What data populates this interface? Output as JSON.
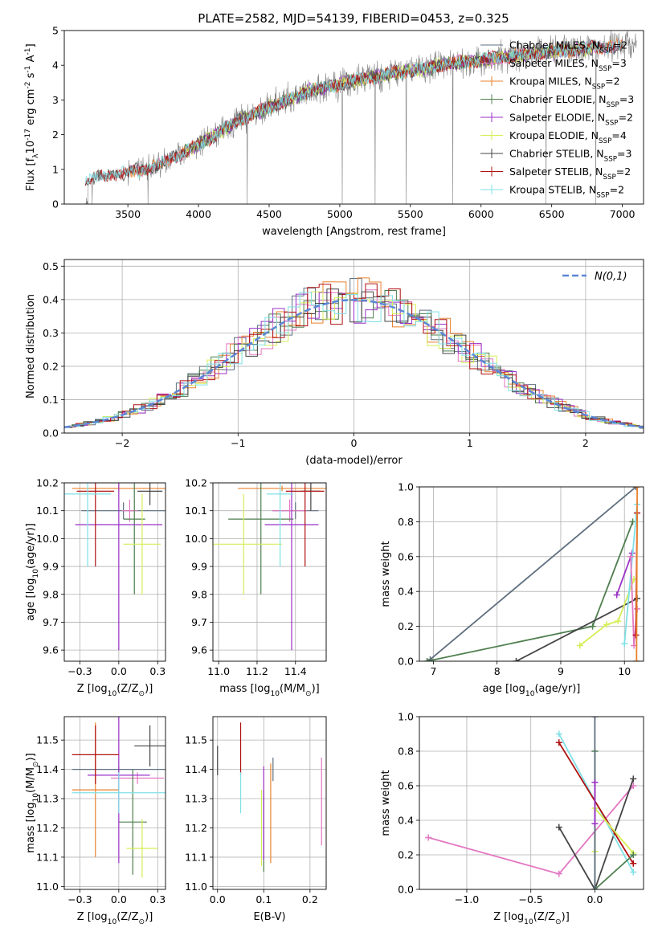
{
  "figure_title": "PLATE=2582, MJD=54139, FIBERID=0453, z=0.325",
  "colors": {
    "chab_miles": "#5f6f7f",
    "salp_miles": "#e377c2",
    "krou_miles": "#e9822e",
    "chab_elodie": "#4f7f4f",
    "salp_elodie": "#9b30c8",
    "krou_elodie": "#d6ee55",
    "chab_stelib": "#444444",
    "salp_stelib": "#b01010",
    "krou_stelib": "#7fe0e6",
    "data": "#808080",
    "gauss": "#5b86d6",
    "grid": "#b0b0b0"
  },
  "chart_data": [
    {
      "id": "spectrum",
      "type": "line",
      "title": "PLATE=2582, MJD=54139, FIBERID=0453, z=0.325",
      "xlabel": "wavelength [Angstrom, rest frame]",
      "ylabel": "Flux [f$_\\lambda$10$^{-17}$ erg cm$^{-2}$ s$^{-1}$ A$^{-1}$]",
      "xlim": [
        3050,
        7150
      ],
      "ylim": [
        0,
        5
      ],
      "xticks": [
        3500,
        4000,
        4500,
        5000,
        5500,
        6000,
        6500,
        7000
      ],
      "yticks": [
        0,
        1,
        2,
        3,
        4,
        5
      ],
      "grid": false,
      "legend": "right",
      "continuum": {
        "x": [
          3200,
          3300,
          3400,
          3500,
          3600,
          3700,
          3800,
          3900,
          4000,
          4100,
          4200,
          4300,
          4400,
          4500,
          4600,
          4700,
          4800,
          4900,
          5000,
          5100,
          5200,
          5300,
          5400,
          5500,
          5600,
          5700,
          5800,
          5900,
          6000,
          6100,
          6200,
          6300,
          6400,
          6500,
          6600,
          6700,
          6800,
          6900,
          7000,
          7100
        ],
        "y": [
          0.65,
          0.8,
          0.85,
          0.9,
          1.0,
          1.1,
          1.3,
          1.5,
          1.7,
          1.95,
          2.2,
          2.45,
          2.6,
          2.8,
          2.95,
          3.1,
          3.3,
          3.35,
          3.45,
          3.55,
          3.65,
          3.7,
          3.8,
          3.85,
          3.9,
          4.0,
          4.05,
          4.1,
          4.15,
          4.2,
          4.25,
          4.3,
          4.35,
          4.4,
          4.42,
          4.45,
          4.5,
          4.52,
          4.55,
          4.58
        ]
      },
      "data_noise_amplitude": 0.55,
      "series": [
        {
          "key": "chab_miles",
          "name": "Chabrier MILES, N$_{SSP}$=2",
          "range": [
            3500,
            7000
          ]
        },
        {
          "key": "salp_miles",
          "name": "Salpeter MILES, N$_{SSP}$=3",
          "range": [
            3500,
            7000
          ]
        },
        {
          "key": "krou_miles",
          "name": "Kroupa MILES, N$_{SSP}$=2",
          "range": [
            3500,
            7000
          ]
        },
        {
          "key": "chab_elodie",
          "name": "Chabrier ELODIE, N$_{SSP}$=3",
          "range": [
            3900,
            6800
          ]
        },
        {
          "key": "salp_elodie",
          "name": "Salpeter ELODIE, N$_{SSP}$=2",
          "range": [
            3900,
            6800
          ]
        },
        {
          "key": "krou_elodie",
          "name": "Kroupa ELODIE, N$_{SSP}$=4",
          "range": [
            3900,
            6800
          ]
        },
        {
          "key": "chab_stelib",
          "name": "Chabrier STELIB, N$_{SSP}$=3",
          "range": [
            3200,
            7000
          ]
        },
        {
          "key": "salp_stelib",
          "name": "Salpeter STELIB, N$_{SSP}$=2",
          "range": [
            3200,
            7000
          ]
        },
        {
          "key": "krou_stelib",
          "name": "Kroupa STELIB, N$_{SSP}$=2",
          "range": [
            3200,
            7000
          ]
        }
      ]
    },
    {
      "id": "residuals",
      "type": "line",
      "xlabel": "(data-model)/error",
      "ylabel": "Normed distribution",
      "xlim": [
        -2.5,
        2.5
      ],
      "ylim": [
        0,
        0.52
      ],
      "xticks": [
        -2,
        -1,
        0,
        1,
        2
      ],
      "yticks": [
        0.0,
        0.1,
        0.2,
        0.3,
        0.4,
        0.5
      ],
      "grid": true,
      "legend": "top-right",
      "gauss_label": "$\\mathcal{N}(0,1)$",
      "bin_width": 0.1,
      "hist_keys": [
        "chab_miles",
        "salp_miles",
        "krou_miles",
        "chab_elodie",
        "salp_elodie",
        "krou_elodie",
        "chab_stelib",
        "salp_stelib",
        "krou_stelib"
      ]
    },
    {
      "id": "age_vs_Z",
      "type": "scatter",
      "xlabel": "Z [log$_{10}$($Z/Z_\\odot$)]",
      "ylabel": "age  [log$_{10}$($age/yr$)]",
      "xlim": [
        -0.35,
        0.3
      ],
      "ylim": [
        9.56,
        10.2
      ],
      "xticks": [
        -0.25,
        0.0,
        0.25
      ],
      "yticks": [
        9.6,
        9.7,
        9.8,
        9.9,
        10.0,
        10.1,
        10.2
      ],
      "grid": true,
      "points": [
        {
          "key": "chab_miles",
          "x": 0.03,
          "y": 10.1,
          "ex": 0.27,
          "ey": 0.03
        },
        {
          "key": "salp_miles",
          "x": 0.07,
          "y": 10.1,
          "ex": 0.05,
          "ey": 0.04
        },
        {
          "key": "krou_miles",
          "x": -0.0,
          "y": 10.18,
          "ex": 0.3,
          "ey": 0.01
        },
        {
          "key": "chab_elodie",
          "x": 0.1,
          "y": 10.07,
          "ex": 0.07,
          "ey": 0.27
        },
        {
          "key": "salp_elodie",
          "x": 0.0,
          "y": 10.05,
          "ex": 0.28,
          "ey": 0.45
        },
        {
          "key": "krou_elodie",
          "x": 0.15,
          "y": 9.98,
          "ex": 0.12,
          "ey": 0.18
        },
        {
          "key": "chab_stelib",
          "x": 0.2,
          "y": 10.17,
          "ex": 0.08,
          "ey": 0.05
        },
        {
          "key": "salp_stelib",
          "x": -0.15,
          "y": 10.17,
          "ex": 0.12,
          "ey": 0.27
        },
        {
          "key": "krou_stelib",
          "x": -0.2,
          "y": 10.16,
          "ex": 0.15,
          "ey": 0.26
        }
      ]
    },
    {
      "id": "age_vs_mass",
      "type": "scatter",
      "xlabel": "mass [log$_{10}$($M/M_\\odot$)]",
      "ylabel": "",
      "xlim": [
        10.97,
        11.56
      ],
      "ylim": [
        9.56,
        10.2
      ],
      "xticks": [
        11.0,
        11.2,
        11.4
      ],
      "yticks": [
        9.6,
        9.7,
        9.8,
        9.9,
        10.0,
        10.1,
        10.2
      ],
      "grid": true,
      "points": [
        {
          "key": "chab_miles",
          "x": 11.4,
          "y": 10.1,
          "ex": 0.12,
          "ey": 0.03
        },
        {
          "key": "salp_miles",
          "x": 11.37,
          "y": 10.1,
          "ex": 0.09,
          "ey": 0.04
        },
        {
          "key": "krou_miles",
          "x": 11.33,
          "y": 10.18,
          "ex": 0.23,
          "ey": 0.01
        },
        {
          "key": "chab_elodie",
          "x": 11.22,
          "y": 10.07,
          "ex": 0.17,
          "ey": 0.27
        },
        {
          "key": "salp_elodie",
          "x": 11.38,
          "y": 10.05,
          "ex": 0.14,
          "ey": 0.45
        },
        {
          "key": "krou_elodie",
          "x": 11.13,
          "y": 9.98,
          "ex": 0.2,
          "ey": 0.18
        },
        {
          "key": "chab_stelib",
          "x": 11.48,
          "y": 10.17,
          "ex": 0.05,
          "ey": 0.07
        },
        {
          "key": "salp_stelib",
          "x": 11.45,
          "y": 10.17,
          "ex": 0.1,
          "ey": 0.27
        },
        {
          "key": "krou_stelib",
          "x": 11.32,
          "y": 10.16,
          "ex": 0.07,
          "ey": 0.26
        }
      ]
    },
    {
      "id": "weight_vs_age",
      "type": "line",
      "xlabel": "age  [log$_{10}$($age/yr$)]",
      "ylabel": "mass weight",
      "xlim": [
        6.78,
        10.3
      ],
      "ylim": [
        0,
        1
      ],
      "xticks": [
        7,
        8,
        9,
        10
      ],
      "yticks": [
        0.0,
        0.2,
        0.4,
        0.6,
        0.8,
        1.0
      ],
      "grid": true,
      "series": [
        {
          "key": "chab_miles",
          "x": [
            6.95,
            10.18
          ],
          "y": [
            0.01,
            1.0
          ]
        },
        {
          "key": "chab_elodie",
          "x": [
            6.9,
            9.5,
            10.13
          ],
          "y": [
            0.0,
            0.2,
            0.8
          ]
        },
        {
          "key": "chab_stelib",
          "x": [
            8.3,
            10.2
          ],
          "y": [
            0.0,
            0.36
          ]
        },
        {
          "key": "krou_elodie",
          "x": [
            9.3,
            9.72,
            9.9,
            10.15
          ],
          "y": [
            0.09,
            0.21,
            0.23,
            0.47
          ]
        },
        {
          "key": "salp_elodie",
          "x": [
            9.88,
            10.12
          ],
          "y": [
            0.38,
            0.62
          ]
        },
        {
          "key": "krou_stelib",
          "x": [
            10.0,
            10.2
          ],
          "y": [
            0.1,
            0.9
          ]
        },
        {
          "key": "salp_miles",
          "x": [
            10.1,
            10.15,
            10.2
          ],
          "y": [
            0.6,
            0.09,
            0.3
          ]
        },
        {
          "key": "salp_stelib",
          "x": [
            10.18,
            10.2
          ],
          "y": [
            0.15,
            0.85
          ]
        },
        {
          "key": "krou_miles",
          "x": [
            10.19,
            10.2
          ],
          "y": [
            0.0,
            1.0
          ]
        }
      ]
    },
    {
      "id": "mass_vs_Z",
      "type": "scatter",
      "xlabel": "Z [log$_{10}$($Z/Z_\\odot$)]",
      "ylabel": "mass [log$_{10}$($M/M_\\odot$)]",
      "xlim": [
        -0.35,
        0.3
      ],
      "ylim": [
        10.99,
        11.58
      ],
      "xticks": [
        -0.25,
        0.0,
        0.25
      ],
      "yticks": [
        11.0,
        11.1,
        11.2,
        11.3,
        11.4,
        11.5
      ],
      "grid": true,
      "points": [
        {
          "key": "chab_miles",
          "x": 0.0,
          "y": 11.4,
          "ex": 0.3,
          "ey": 0.01
        },
        {
          "key": "salp_miles",
          "x": 0.12,
          "y": 11.37,
          "ex": 0.17,
          "ey": 0.02
        },
        {
          "key": "krou_miles",
          "x": -0.15,
          "y": 11.33,
          "ex": 0.15,
          "ey": 0.23
        },
        {
          "key": "chab_elodie",
          "x": 0.09,
          "y": 11.22,
          "ex": 0.09,
          "ey": 0.18
        },
        {
          "key": "salp_elodie",
          "x": 0.0,
          "y": 11.38,
          "ex": 0.2,
          "ey": 0.3
        },
        {
          "key": "krou_elodie",
          "x": 0.15,
          "y": 11.13,
          "ex": 0.1,
          "ey": 0.1
        },
        {
          "key": "chab_stelib",
          "x": 0.2,
          "y": 11.48,
          "ex": 0.1,
          "ey": 0.07
        },
        {
          "key": "salp_stelib",
          "x": -0.15,
          "y": 11.45,
          "ex": 0.15,
          "ey": 0.1
        },
        {
          "key": "krou_stelib",
          "x": 0.0,
          "y": 11.32,
          "ex": 0.3,
          "ey": 0.07
        }
      ]
    },
    {
      "id": "mass_vs_ebv",
      "type": "scatter",
      "xlabel": "E(B-V)",
      "ylabel": "",
      "xlim": [
        -0.01,
        0.235
      ],
      "ylim": [
        10.99,
        11.58
      ],
      "xticks": [
        0.0,
        0.1,
        0.2
      ],
      "yticks": [
        11.0,
        11.1,
        11.2,
        11.3,
        11.4,
        11.5
      ],
      "grid": true,
      "points": [
        {
          "key": "chab_miles",
          "x": 0.12,
          "y": 11.4,
          "ey": 0.04
        },
        {
          "key": "salp_miles",
          "x": 0.225,
          "y": 11.29,
          "ey": 0.15
        },
        {
          "key": "krou_miles",
          "x": 0.115,
          "y": 11.25,
          "ey": 0.17
        },
        {
          "key": "chab_elodie",
          "x": 0.1,
          "y": 11.19,
          "ey": 0.14
        },
        {
          "key": "salp_elodie",
          "x": 0.1,
          "y": 11.25,
          "ey": 0.16
        },
        {
          "key": "krou_elodie",
          "x": 0.095,
          "y": 11.2,
          "ey": 0.13
        },
        {
          "key": "chab_stelib",
          "x": 0.0,
          "y": 11.43,
          "ey": 0.05
        },
        {
          "key": "salp_stelib",
          "x": 0.05,
          "y": 11.47,
          "ey": 0.09
        },
        {
          "key": "krou_stelib",
          "x": 0.05,
          "y": 11.32,
          "ey": 0.07
        }
      ]
    },
    {
      "id": "weight_vs_Z",
      "type": "line",
      "xlabel": "Z [log$_{10}$($Z/Z_\\odot$)]",
      "ylabel": "mass weight",
      "xlim": [
        -1.37,
        0.38
      ],
      "ylim": [
        0,
        1
      ],
      "xticks": [
        -1.0,
        -0.5,
        0.0
      ],
      "yticks": [
        0.0,
        0.2,
        0.4,
        0.6,
        0.8,
        1.0
      ],
      "grid": true,
      "series": [
        {
          "key": "salp_miles",
          "x": [
            -1.3,
            -0.28,
            0.3
          ],
          "y": [
            0.3,
            0.09,
            0.6
          ]
        },
        {
          "key": "chab_stelib",
          "x": [
            -0.28,
            0.0,
            0.3
          ],
          "y": [
            0.36,
            0.0,
            0.64
          ]
        },
        {
          "key": "krou_stelib",
          "x": [
            -0.28,
            0.3
          ],
          "y": [
            0.9,
            0.1
          ]
        },
        {
          "key": "salp_stelib",
          "x": [
            -0.28,
            0.3
          ],
          "y": [
            0.85,
            0.15
          ]
        },
        {
          "key": "krou_elodie",
          "x": [
            0.0,
            0.0,
            0.3
          ],
          "y": [
            0.22,
            0.47,
            0.21
          ]
        },
        {
          "key": "chab_elodie",
          "x": [
            0.0,
            0.0,
            0.3
          ],
          "y": [
            0.8,
            0.0,
            0.2
          ]
        },
        {
          "key": "chab_miles",
          "x": [
            0.0,
            0.0
          ],
          "y": [
            0.0,
            1.0
          ]
        },
        {
          "key": "salp_elodie",
          "x": [
            0.0,
            0.0
          ],
          "y": [
            0.38,
            0.62
          ]
        }
      ]
    }
  ]
}
